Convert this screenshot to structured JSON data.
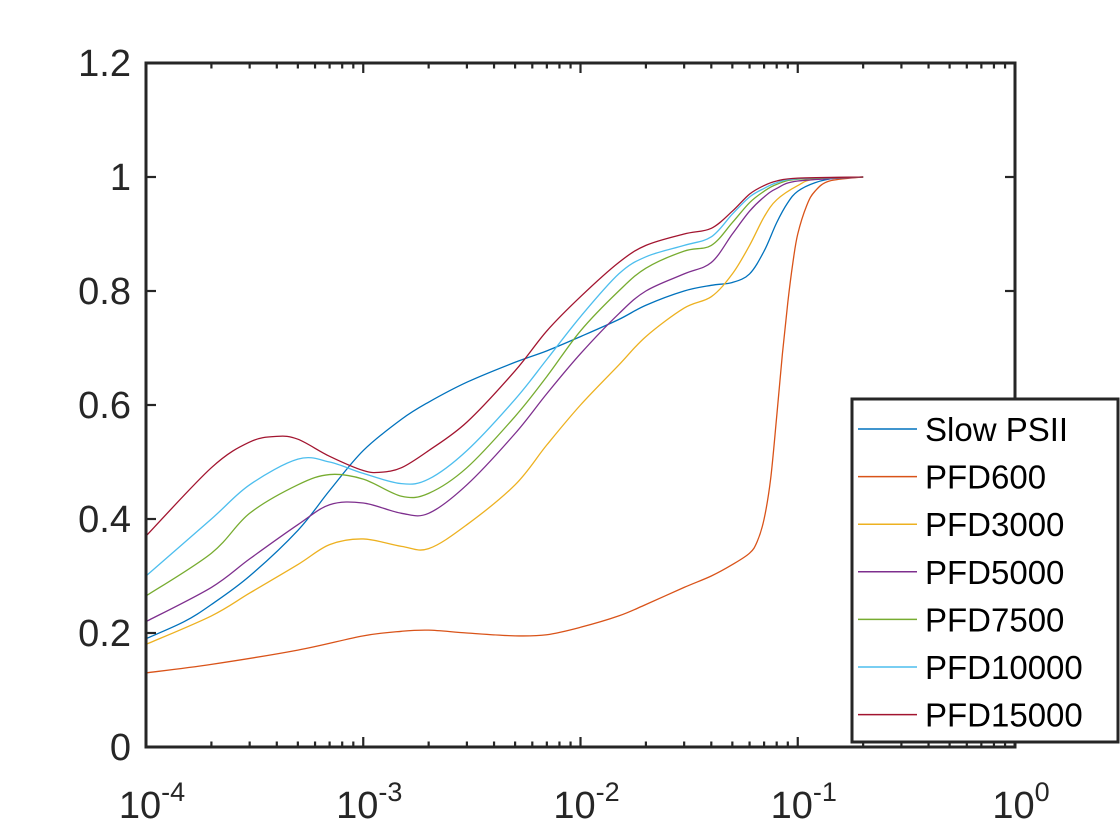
{
  "chart_data": {
    "type": "line",
    "x_scale": "log",
    "xlim": [
      0.0001,
      1
    ],
    "ylim": [
      0,
      1.2
    ],
    "x_ticks": [
      0.0001,
      0.001,
      0.01,
      0.1,
      1
    ],
    "x_tick_labels": [
      {
        "base": "10",
        "exp": "-4"
      },
      {
        "base": "10",
        "exp": "-3"
      },
      {
        "base": "10",
        "exp": "-2"
      },
      {
        "base": "10",
        "exp": "-1"
      },
      {
        "base": "10",
        "exp": "0"
      }
    ],
    "y_ticks": [
      0,
      0.2,
      0.4,
      0.6,
      0.8,
      1,
      1.2
    ],
    "y_tick_labels": [
      "0",
      "0.2",
      "0.4",
      "0.6",
      "0.8",
      "1",
      "1.2"
    ],
    "title": "",
    "xlabel": "",
    "ylabel": "",
    "grid": false,
    "legend_position": "lower-right",
    "series": [
      {
        "name": "Slow PSII",
        "color": "#0072BD",
        "points": [
          [
            0.0001,
            0.19
          ],
          [
            0.00015,
            0.22
          ],
          [
            0.0002,
            0.25
          ],
          [
            0.0003,
            0.3
          ],
          [
            0.0005,
            0.38
          ],
          [
            0.0007,
            0.45
          ],
          [
            0.001,
            0.52
          ],
          [
            0.0015,
            0.575
          ],
          [
            0.002,
            0.605
          ],
          [
            0.003,
            0.64
          ],
          [
            0.005,
            0.675
          ],
          [
            0.007,
            0.695
          ],
          [
            0.01,
            0.72
          ],
          [
            0.015,
            0.75
          ],
          [
            0.02,
            0.775
          ],
          [
            0.03,
            0.8
          ],
          [
            0.04,
            0.81
          ],
          [
            0.05,
            0.815
          ],
          [
            0.06,
            0.83
          ],
          [
            0.07,
            0.87
          ],
          [
            0.08,
            0.92
          ],
          [
            0.09,
            0.955
          ],
          [
            0.1,
            0.975
          ],
          [
            0.12,
            0.99
          ],
          [
            0.15,
            0.998
          ],
          [
            0.2,
            1.0
          ]
        ]
      },
      {
        "name": "PFD600",
        "color": "#D95319",
        "points": [
          [
            0.0001,
            0.13
          ],
          [
            0.0002,
            0.145
          ],
          [
            0.0005,
            0.17
          ],
          [
            0.001,
            0.195
          ],
          [
            0.0015,
            0.203
          ],
          [
            0.002,
            0.205
          ],
          [
            0.003,
            0.2
          ],
          [
            0.005,
            0.195
          ],
          [
            0.007,
            0.197
          ],
          [
            0.01,
            0.21
          ],
          [
            0.015,
            0.23
          ],
          [
            0.02,
            0.25
          ],
          [
            0.03,
            0.28
          ],
          [
            0.04,
            0.3
          ],
          [
            0.05,
            0.32
          ],
          [
            0.06,
            0.34
          ],
          [
            0.065,
            0.36
          ],
          [
            0.07,
            0.4
          ],
          [
            0.075,
            0.47
          ],
          [
            0.08,
            0.58
          ],
          [
            0.085,
            0.69
          ],
          [
            0.09,
            0.78
          ],
          [
            0.095,
            0.85
          ],
          [
            0.1,
            0.9
          ],
          [
            0.11,
            0.95
          ],
          [
            0.12,
            0.975
          ],
          [
            0.14,
            0.993
          ],
          [
            0.2,
            1.0
          ]
        ]
      },
      {
        "name": "PFD3000",
        "color": "#EDB120",
        "points": [
          [
            0.0001,
            0.18
          ],
          [
            0.0002,
            0.23
          ],
          [
            0.0003,
            0.27
          ],
          [
            0.0005,
            0.32
          ],
          [
            0.0007,
            0.355
          ],
          [
            0.001,
            0.365
          ],
          [
            0.0015,
            0.352
          ],
          [
            0.002,
            0.348
          ],
          [
            0.003,
            0.39
          ],
          [
            0.005,
            0.46
          ],
          [
            0.007,
            0.53
          ],
          [
            0.01,
            0.6
          ],
          [
            0.015,
            0.67
          ],
          [
            0.02,
            0.72
          ],
          [
            0.03,
            0.77
          ],
          [
            0.04,
            0.79
          ],
          [
            0.05,
            0.83
          ],
          [
            0.06,
            0.88
          ],
          [
            0.07,
            0.93
          ],
          [
            0.08,
            0.96
          ],
          [
            0.1,
            0.985
          ],
          [
            0.12,
            0.996
          ],
          [
            0.2,
            1.0
          ]
        ]
      },
      {
        "name": "PFD5000",
        "color": "#7E2F8E",
        "points": [
          [
            0.0001,
            0.22
          ],
          [
            0.0002,
            0.28
          ],
          [
            0.0003,
            0.33
          ],
          [
            0.0005,
            0.39
          ],
          [
            0.0007,
            0.425
          ],
          [
            0.001,
            0.428
          ],
          [
            0.0015,
            0.41
          ],
          [
            0.002,
            0.41
          ],
          [
            0.003,
            0.46
          ],
          [
            0.005,
            0.55
          ],
          [
            0.007,
            0.62
          ],
          [
            0.01,
            0.69
          ],
          [
            0.015,
            0.76
          ],
          [
            0.02,
            0.8
          ],
          [
            0.03,
            0.83
          ],
          [
            0.04,
            0.85
          ],
          [
            0.05,
            0.9
          ],
          [
            0.06,
            0.94
          ],
          [
            0.07,
            0.965
          ],
          [
            0.08,
            0.98
          ],
          [
            0.1,
            0.993
          ],
          [
            0.2,
            1.0
          ]
        ]
      },
      {
        "name": "PFD7500",
        "color": "#77AC30",
        "points": [
          [
            0.0001,
            0.265
          ],
          [
            0.0002,
            0.34
          ],
          [
            0.0003,
            0.41
          ],
          [
            0.0005,
            0.46
          ],
          [
            0.0007,
            0.478
          ],
          [
            0.001,
            0.47
          ],
          [
            0.0015,
            0.44
          ],
          [
            0.002,
            0.445
          ],
          [
            0.003,
            0.49
          ],
          [
            0.005,
            0.58
          ],
          [
            0.007,
            0.65
          ],
          [
            0.01,
            0.73
          ],
          [
            0.015,
            0.8
          ],
          [
            0.02,
            0.84
          ],
          [
            0.03,
            0.87
          ],
          [
            0.04,
            0.88
          ],
          [
            0.05,
            0.92
          ],
          [
            0.06,
            0.955
          ],
          [
            0.07,
            0.975
          ],
          [
            0.08,
            0.987
          ],
          [
            0.1,
            0.996
          ],
          [
            0.2,
            1.0
          ]
        ]
      },
      {
        "name": "PFD10000",
        "color": "#4DBEEE",
        "points": [
          [
            0.0001,
            0.3
          ],
          [
            0.0002,
            0.4
          ],
          [
            0.0003,
            0.46
          ],
          [
            0.0005,
            0.505
          ],
          [
            0.0007,
            0.5
          ],
          [
            0.001,
            0.48
          ],
          [
            0.0015,
            0.462
          ],
          [
            0.002,
            0.47
          ],
          [
            0.003,
            0.52
          ],
          [
            0.005,
            0.61
          ],
          [
            0.007,
            0.68
          ],
          [
            0.01,
            0.755
          ],
          [
            0.015,
            0.83
          ],
          [
            0.02,
            0.86
          ],
          [
            0.03,
            0.88
          ],
          [
            0.04,
            0.895
          ],
          [
            0.05,
            0.935
          ],
          [
            0.06,
            0.965
          ],
          [
            0.07,
            0.98
          ],
          [
            0.08,
            0.99
          ],
          [
            0.1,
            0.997
          ],
          [
            0.2,
            1.0
          ]
        ]
      },
      {
        "name": "PFD15000",
        "color": "#A2142F",
        "points": [
          [
            0.0001,
            0.37
          ],
          [
            0.0002,
            0.49
          ],
          [
            0.0003,
            0.535
          ],
          [
            0.0004,
            0.545
          ],
          [
            0.0005,
            0.54
          ],
          [
            0.0007,
            0.51
          ],
          [
            0.001,
            0.485
          ],
          [
            0.0012,
            0.482
          ],
          [
            0.0015,
            0.49
          ],
          [
            0.002,
            0.52
          ],
          [
            0.003,
            0.57
          ],
          [
            0.005,
            0.66
          ],
          [
            0.007,
            0.73
          ],
          [
            0.01,
            0.79
          ],
          [
            0.015,
            0.85
          ],
          [
            0.02,
            0.88
          ],
          [
            0.03,
            0.9
          ],
          [
            0.04,
            0.91
          ],
          [
            0.05,
            0.94
          ],
          [
            0.06,
            0.97
          ],
          [
            0.07,
            0.985
          ],
          [
            0.08,
            0.993
          ],
          [
            0.1,
            0.998
          ],
          [
            0.2,
            1.0
          ]
        ]
      }
    ]
  }
}
